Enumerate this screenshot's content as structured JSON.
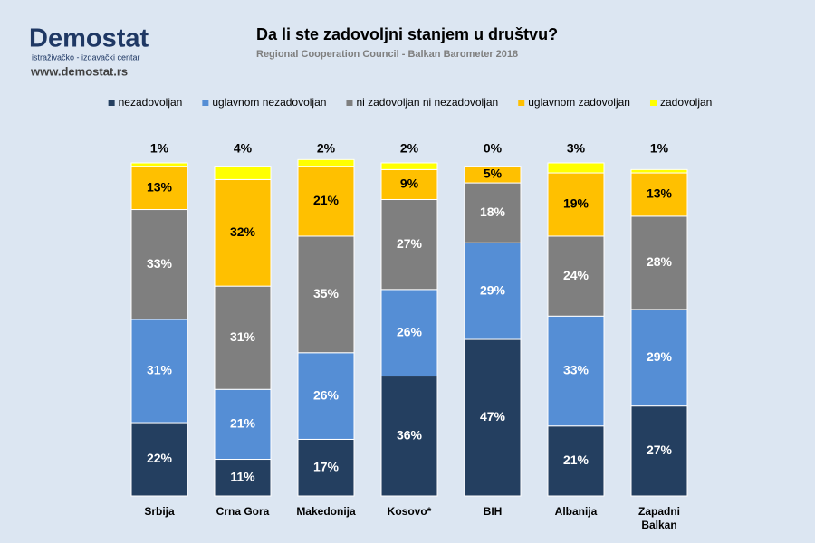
{
  "header": {
    "logo": "Demostat",
    "logo_tagline": "istraživačko - izdavački centar",
    "website": "www.demostat.rs"
  },
  "chart_data": {
    "type": "stacked_bar",
    "title": "Da li ste zadovoljni stanjem u društvu?",
    "subtitle": "Regional Cooperation Council - Balkan Barometer 2018",
    "categories": [
      "Srbija",
      "Crna Gora",
      "Makedonija",
      "Kosovo*",
      "BIH",
      "Albanija",
      "Zapadni Balkan"
    ],
    "series": [
      {
        "name": "nezadovoljan",
        "color": "#243f60",
        "values": [
          22,
          11,
          17,
          36,
          47,
          21,
          27
        ],
        "value_labels": [
          "22%",
          "11%",
          "17%",
          "36%",
          "47%",
          "21%",
          "27%"
        ]
      },
      {
        "name": "uglavnom nezadovoljan",
        "color": "#558ed5",
        "values": [
          31,
          21,
          26,
          26,
          29,
          33,
          29
        ],
        "value_labels": [
          "31%",
          "21%",
          "26%",
          "26%",
          "29%",
          "33%",
          "29%"
        ]
      },
      {
        "name": "ni zadovoljan ni nezadovoljan",
        "color": "#7f7f7f",
        "values": [
          33,
          31,
          35,
          27,
          18,
          24,
          28
        ],
        "value_labels": [
          "33%",
          "31%",
          "35%",
          "27%",
          "18%",
          "24%",
          "28%"
        ]
      },
      {
        "name": "uglavnom zadovoljan",
        "color": "#ffc000",
        "values": [
          13,
          32,
          21,
          9,
          5,
          19,
          13
        ],
        "value_labels": [
          "13%",
          "32%",
          "21%",
          "9%",
          "5%",
          "19%",
          "13%"
        ]
      },
      {
        "name": "zadovoljan",
        "color": "#ffff00",
        "values": [
          1,
          4,
          2,
          2,
          0,
          3,
          1
        ],
        "value_labels": [
          "1%",
          "4%",
          "2%",
          "2%",
          "0%",
          "3%",
          "1%"
        ]
      }
    ],
    "legend": "top"
  }
}
